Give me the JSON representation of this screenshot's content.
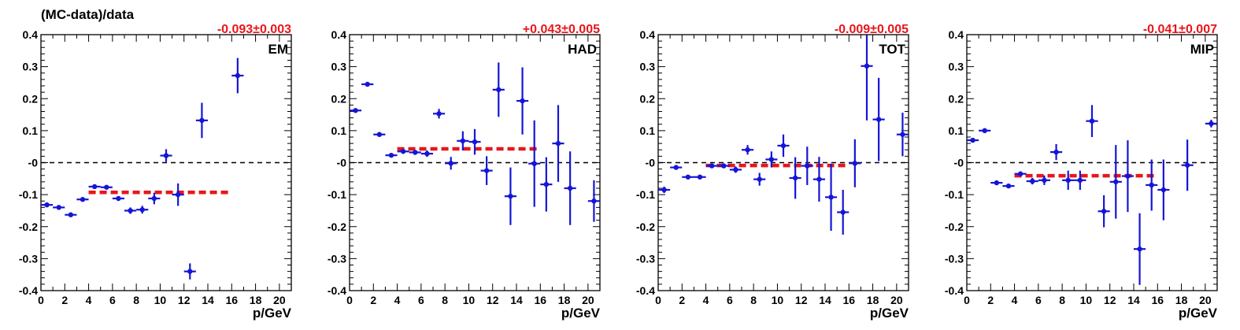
{
  "figure": {
    "ylabel": "(MC-data)/data"
  },
  "colors": {
    "points": "#1515d6",
    "fit": "#e8161b",
    "zero_line": "#000000"
  },
  "chart_data": [
    {
      "type": "scatter",
      "panel_label": "EM",
      "fit_label": "-0.093±0.003",
      "fit": {
        "value": -0.093,
        "x_range": [
          4,
          16
        ]
      },
      "xlabel": "p/GeV",
      "xlim": [
        0,
        21
      ],
      "ylim": [
        -0.4,
        0.4
      ],
      "xticks": [
        "0",
        "2",
        "4",
        "6",
        "8",
        "10",
        "12",
        "14",
        "16",
        "18",
        "20"
      ],
      "yticks": [
        "-0.4",
        "-0.3",
        "-0.2",
        "-0.1",
        "-0",
        "0.1",
        "0.2",
        "0.3",
        "0.4"
      ],
      "reference_line": 0,
      "points": [
        {
          "x": 0.5,
          "y": -0.132,
          "err": 0.004
        },
        {
          "x": 1.5,
          "y": -0.14,
          "err": 0.004
        },
        {
          "x": 2.5,
          "y": -0.163,
          "err": 0.004
        },
        {
          "x": 3.5,
          "y": -0.115,
          "err": 0.004
        },
        {
          "x": 4.5,
          "y": -0.075,
          "err": 0.004
        },
        {
          "x": 5.5,
          "y": -0.077,
          "err": 0.005
        },
        {
          "x": 6.5,
          "y": -0.112,
          "err": 0.006
        },
        {
          "x": 7.5,
          "y": -0.15,
          "err": 0.01
        },
        {
          "x": 8.5,
          "y": -0.147,
          "err": 0.012
        },
        {
          "x": 9.5,
          "y": -0.112,
          "err": 0.018
        },
        {
          "x": 10.5,
          "y": 0.022,
          "err": 0.02
        },
        {
          "x": 11.5,
          "y": -0.1,
          "err": 0.035
        },
        {
          "x": 12.5,
          "y": -0.34,
          "err": 0.025
        },
        {
          "x": 13.5,
          "y": 0.132,
          "err": 0.055
        },
        {
          "x": 16.5,
          "y": 0.272,
          "err": 0.055
        }
      ]
    },
    {
      "type": "scatter",
      "panel_label": "HAD",
      "fit_label": "+0.043±0.005",
      "fit": {
        "value": 0.043,
        "x_range": [
          4,
          16
        ]
      },
      "xlabel": "p/GeV",
      "xlim": [
        0,
        21
      ],
      "ylim": [
        -0.4,
        0.4
      ],
      "xticks": [
        "0",
        "2",
        "4",
        "6",
        "8",
        "10",
        "12",
        "14",
        "16",
        "18",
        "20"
      ],
      "yticks": [
        "-0.4",
        "-0.3",
        "-0.2",
        "-0.1",
        "-0",
        "0.1",
        "0.2",
        "0.3",
        "0.4"
      ],
      "reference_line": 0,
      "points": [
        {
          "x": 0.5,
          "y": 0.163,
          "err": 0.004
        },
        {
          "x": 1.5,
          "y": 0.245,
          "err": 0.004
        },
        {
          "x": 2.5,
          "y": 0.088,
          "err": 0.004
        },
        {
          "x": 3.5,
          "y": 0.023,
          "err": 0.004
        },
        {
          "x": 4.5,
          "y": 0.035,
          "err": 0.005
        },
        {
          "x": 5.5,
          "y": 0.032,
          "err": 0.007
        },
        {
          "x": 6.5,
          "y": 0.028,
          "err": 0.01
        },
        {
          "x": 7.5,
          "y": 0.153,
          "err": 0.015
        },
        {
          "x": 8.5,
          "y": -0.002,
          "err": 0.02
        },
        {
          "x": 9.5,
          "y": 0.068,
          "err": 0.03
        },
        {
          "x": 10.5,
          "y": 0.065,
          "err": 0.04
        },
        {
          "x": 11.5,
          "y": -0.025,
          "err": 0.045
        },
        {
          "x": 12.5,
          "y": 0.228,
          "err": 0.085
        },
        {
          "x": 13.5,
          "y": -0.105,
          "err": 0.09
        },
        {
          "x": 14.5,
          "y": 0.193,
          "err": 0.105
        },
        {
          "x": 15.5,
          "y": -0.003,
          "err": 0.135
        },
        {
          "x": 16.5,
          "y": -0.068,
          "err": 0.085
        },
        {
          "x": 17.5,
          "y": 0.06,
          "err": 0.12
        },
        {
          "x": 18.5,
          "y": -0.08,
          "err": 0.115
        },
        {
          "x": 20.5,
          "y": -0.12,
          "err": 0.065
        }
      ]
    },
    {
      "type": "scatter",
      "panel_label": "TOT",
      "fit_label": "-0.009±0.005",
      "fit": {
        "value": -0.009,
        "x_range": [
          4,
          16
        ]
      },
      "xlabel": "p/GeV",
      "xlim": [
        0,
        21
      ],
      "ylim": [
        -0.4,
        0.4
      ],
      "xticks": [
        "0",
        "2",
        "4",
        "6",
        "8",
        "10",
        "12",
        "14",
        "16",
        "18",
        "20"
      ],
      "yticks": [
        "-0.4",
        "-0.3",
        "-0.2",
        "-0.1",
        "-0",
        "0.1",
        "0.2",
        "0.3",
        "0.4"
      ],
      "reference_line": 0,
      "points": [
        {
          "x": 0.5,
          "y": -0.085,
          "err": 0.01
        },
        {
          "x": 1.5,
          "y": -0.015,
          "err": 0.005
        },
        {
          "x": 2.5,
          "y": -0.045,
          "err": 0.005
        },
        {
          "x": 3.5,
          "y": -0.045,
          "err": 0.005
        },
        {
          "x": 4.5,
          "y": -0.01,
          "err": 0.005
        },
        {
          "x": 5.5,
          "y": -0.01,
          "err": 0.006
        },
        {
          "x": 6.5,
          "y": -0.022,
          "err": 0.01
        },
        {
          "x": 7.5,
          "y": 0.04,
          "err": 0.015
        },
        {
          "x": 8.5,
          "y": -0.052,
          "err": 0.02
        },
        {
          "x": 9.5,
          "y": 0.01,
          "err": 0.025
        },
        {
          "x": 10.5,
          "y": 0.053,
          "err": 0.035
        },
        {
          "x": 11.5,
          "y": -0.048,
          "err": 0.065
        },
        {
          "x": 12.5,
          "y": -0.01,
          "err": 0.06
        },
        {
          "x": 13.5,
          "y": -0.052,
          "err": 0.07
        },
        {
          "x": 14.5,
          "y": -0.108,
          "err": 0.105
        },
        {
          "x": 15.5,
          "y": -0.155,
          "err": 0.07
        },
        {
          "x": 16.5,
          "y": -0.002,
          "err": 0.075
        },
        {
          "x": 17.5,
          "y": 0.302,
          "err": 0.17
        },
        {
          "x": 18.5,
          "y": 0.135,
          "err": 0.13
        },
        {
          "x": 20.5,
          "y": 0.088,
          "err": 0.068
        }
      ]
    },
    {
      "type": "scatter",
      "panel_label": "MIP",
      "fit_label": "-0.041±0.007",
      "fit": {
        "value": -0.041,
        "x_range": [
          4,
          16
        ]
      },
      "xlabel": "p/GeV",
      "xlim": [
        0,
        21
      ],
      "ylim": [
        -0.4,
        0.4
      ],
      "xticks": [
        "0",
        "2",
        "4",
        "6",
        "8",
        "10",
        "12",
        "14",
        "16",
        "18",
        "20"
      ],
      "yticks": [
        "-0.4",
        "-0.3",
        "-0.2",
        "-0.1",
        "-0",
        "0.1",
        "0.2",
        "0.3",
        "0.4"
      ],
      "reference_line": 0,
      "points": [
        {
          "x": 0.5,
          "y": 0.07,
          "err": 0.004
        },
        {
          "x": 1.5,
          "y": 0.1,
          "err": 0.004
        },
        {
          "x": 2.5,
          "y": -0.063,
          "err": 0.004
        },
        {
          "x": 3.5,
          "y": -0.073,
          "err": 0.005
        },
        {
          "x": 4.5,
          "y": -0.035,
          "err": 0.006
        },
        {
          "x": 5.5,
          "y": -0.058,
          "err": 0.01
        },
        {
          "x": 6.5,
          "y": -0.055,
          "err": 0.015
        },
        {
          "x": 7.5,
          "y": 0.033,
          "err": 0.025
        },
        {
          "x": 8.5,
          "y": -0.055,
          "err": 0.03
        },
        {
          "x": 9.5,
          "y": -0.055,
          "err": 0.03
        },
        {
          "x": 10.5,
          "y": 0.13,
          "err": 0.05
        },
        {
          "x": 11.5,
          "y": -0.152,
          "err": 0.05
        },
        {
          "x": 12.5,
          "y": -0.06,
          "err": 0.115
        },
        {
          "x": 13.5,
          "y": -0.042,
          "err": 0.112
        },
        {
          "x": 14.5,
          "y": -0.27,
          "err": 0.112
        },
        {
          "x": 15.5,
          "y": -0.07,
          "err": 0.08
        },
        {
          "x": 16.5,
          "y": -0.085,
          "err": 0.095
        },
        {
          "x": 18.5,
          "y": -0.008,
          "err": 0.08
        },
        {
          "x": 20.5,
          "y": 0.122,
          "err": 0.012
        }
      ]
    }
  ]
}
